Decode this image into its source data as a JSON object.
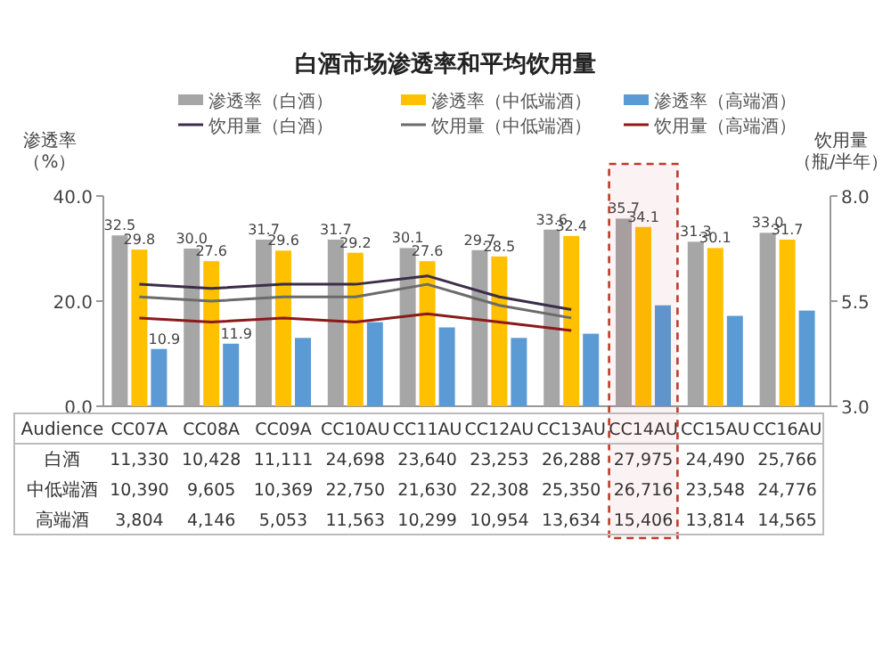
{
  "chart_data": [
    {
      "type": "bar",
      "title": "白酒市场渗透率和平均饮用量",
      "ylabel": "渗透率（%）",
      "y2label": "饮用量（瓶/半年）",
      "categories": [
        "CC07A",
        "CC08A",
        "CC09A",
        "CC10AU",
        "CC11AU",
        "CC12AU",
        "CC13AU",
        "CC14AU",
        "CC15AU",
        "CC16AU"
      ],
      "ylim": [
        0,
        40
      ],
      "yticks": [
        {
          "value": 0,
          "label": "0.0"
        },
        {
          "value": 20,
          "label": "20.0"
        },
        {
          "value": 40,
          "label": "40.0"
        }
      ],
      "y2lim": [
        3,
        8
      ],
      "y2ticks": [
        {
          "value": 3,
          "label": "3.0"
        },
        {
          "value": 5.5,
          "label": "5.5"
        },
        {
          "value": 8,
          "label": "8.0"
        }
      ],
      "legend": "top",
      "bands": [
        {
          "axis": "x",
          "from": "CC14AU",
          "to": "CC14AU",
          "color": "#c0392b"
        }
      ],
      "series": [
        {
          "name": "渗透率（白酒）",
          "color": "#a6a6a6",
          "values": [
            32.5,
            30.0,
            31.7,
            31.7,
            30.1,
            29.7,
            33.6,
            35.7,
            31.3,
            33.0
          ],
          "value_labels": [
            "32.5",
            "30.0",
            "31.7",
            "31.7",
            "30.1",
            "29.7",
            "33.6",
            "35.7",
            "31.3",
            "33.0"
          ]
        },
        {
          "name": "渗透率（中低端酒）",
          "color": "#ffc000",
          "values": [
            29.8,
            27.6,
            29.6,
            29.2,
            27.6,
            28.5,
            32.4,
            34.1,
            30.1,
            31.7
          ],
          "value_labels": [
            "29.8",
            "27.6",
            "29.6",
            "29.2",
            "27.6",
            "28.5",
            "32.4",
            "34.1",
            "30.1",
            "31.7"
          ]
        },
        {
          "name": "渗透率（高端酒）",
          "color": "#5b9bd5",
          "values": [
            10.9,
            11.9,
            13,
            16,
            15,
            13,
            13.8,
            19.2,
            17.2,
            18.2
          ],
          "value_labels": [
            "10.9",
            "11.9",
            null,
            null,
            null,
            null,
            null,
            null,
            null,
            null
          ]
        },
        {
          "name": "饮用量（白酒）",
          "type": "line",
          "axis": "y2",
          "color": "#3a2d4a",
          "values": [
            5.9,
            5.8,
            5.9,
            5.9,
            6.1,
            5.6,
            5.3,
            null,
            null,
            null
          ]
        },
        {
          "name": "饮用量（中低端酒）",
          "type": "line",
          "axis": "y2",
          "color": "#6b6b6b",
          "values": [
            5.6,
            5.5,
            5.6,
            5.6,
            5.9,
            5.4,
            5.1,
            null,
            null,
            null
          ]
        },
        {
          "name": "饮用量（高端酒）",
          "type": "line",
          "axis": "y2",
          "color": "#8b1a1a",
          "values": [
            5.1,
            5.0,
            5.1,
            5.0,
            5.2,
            5.0,
            4.8,
            null,
            null,
            null
          ]
        }
      ]
    },
    {
      "type": "other",
      "title": "Audience",
      "y_categories": [
        "白酒",
        "中低端酒",
        "高端酒"
      ],
      "cell_labels": [
        [
          "11,330",
          "10,428",
          "11,111",
          "24,698",
          "23,640",
          "23,253",
          "26,288",
          "27,975",
          "24,490",
          "25,766"
        ],
        [
          "10,390",
          "9,605",
          "10,369",
          "22,750",
          "21,630",
          "22,308",
          "25,350",
          "26,716",
          "23,548",
          "24,776"
        ],
        [
          "3,804",
          "4,146",
          "5,053",
          "11,563",
          "10,299",
          "10,954",
          "13,634",
          "15,406",
          "13,814",
          "14,565"
        ]
      ]
    }
  ]
}
